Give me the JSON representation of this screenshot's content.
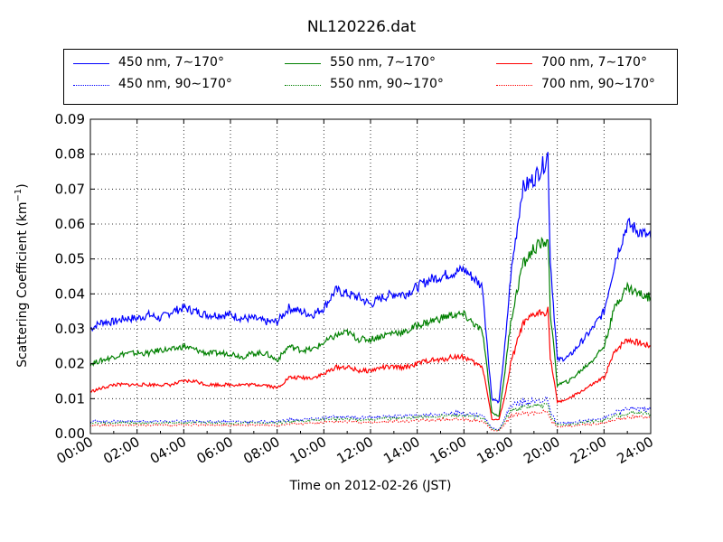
{
  "chart_data": {
    "type": "line",
    "title": "NL120226.dat",
    "xlabel": "Time on 2012-02-26 (JST)",
    "ylabel": "Scattering Coefficient (km",
    "ylabel_sup": "−1",
    "ylabel_end": ")",
    "xlim": [
      "00:00",
      "24:00"
    ],
    "ylim": [
      0,
      0.09
    ],
    "grid": true,
    "legend_position": "top",
    "x_ticks": [
      "00:00",
      "02:00",
      "04:00",
      "06:00",
      "08:00",
      "10:00",
      "12:00",
      "14:00",
      "16:00",
      "18:00",
      "20:00",
      "22:00",
      "24:00"
    ],
    "y_ticks": [
      "0.00",
      "0.01",
      "0.02",
      "0.03",
      "0.04",
      "0.05",
      "0.06",
      "0.07",
      "0.08",
      "0.09"
    ],
    "x_hours": [
      0,
      0.5,
      1,
      1.5,
      2,
      2.5,
      3,
      3.5,
      4,
      4.5,
      5,
      5.5,
      6,
      6.5,
      7,
      7.5,
      8,
      8.5,
      9,
      9.5,
      10,
      10.5,
      11,
      11.5,
      12,
      12.5,
      13,
      13.5,
      14,
      14.5,
      15,
      15.5,
      16,
      16.5,
      16.8,
      17.0,
      17.2,
      17.5,
      17.8,
      18.0,
      18.5,
      19.0,
      19.5,
      19.6,
      19.7,
      20,
      20.5,
      21,
      21.5,
      22,
      22.5,
      23,
      23.5,
      24
    ],
    "series": [
      {
        "name": "450 nm, 7∼170°",
        "color": "#0000ff",
        "style": "solid",
        "values": [
          0.03,
          0.032,
          0.032,
          0.033,
          0.033,
          0.034,
          0.033,
          0.035,
          0.036,
          0.035,
          0.034,
          0.034,
          0.034,
          0.033,
          0.033,
          0.032,
          0.032,
          0.036,
          0.035,
          0.034,
          0.036,
          0.041,
          0.04,
          0.039,
          0.037,
          0.039,
          0.04,
          0.04,
          0.042,
          0.044,
          0.045,
          0.046,
          0.047,
          0.044,
          0.042,
          0.025,
          0.01,
          0.009,
          0.028,
          0.045,
          0.07,
          0.073,
          0.078,
          0.08,
          0.05,
          0.021,
          0.022,
          0.026,
          0.03,
          0.035,
          0.05,
          0.06,
          0.058,
          0.056
        ]
      },
      {
        "name": "550 nm, 7∼170°",
        "color": "#008000",
        "style": "solid",
        "values": [
          0.02,
          0.021,
          0.022,
          0.023,
          0.023,
          0.023,
          0.024,
          0.024,
          0.025,
          0.024,
          0.023,
          0.023,
          0.023,
          0.022,
          0.023,
          0.023,
          0.021,
          0.025,
          0.024,
          0.024,
          0.026,
          0.028,
          0.029,
          0.027,
          0.027,
          0.028,
          0.029,
          0.029,
          0.031,
          0.032,
          0.033,
          0.034,
          0.034,
          0.031,
          0.029,
          0.018,
          0.006,
          0.005,
          0.02,
          0.032,
          0.048,
          0.053,
          0.055,
          0.057,
          0.035,
          0.014,
          0.015,
          0.018,
          0.021,
          0.025,
          0.037,
          0.042,
          0.04,
          0.039
        ]
      },
      {
        "name": "700 nm, 7∼170°",
        "color": "#ff0000",
        "style": "solid",
        "values": [
          0.012,
          0.013,
          0.014,
          0.014,
          0.014,
          0.014,
          0.014,
          0.014,
          0.015,
          0.015,
          0.014,
          0.014,
          0.014,
          0.014,
          0.014,
          0.014,
          0.013,
          0.016,
          0.016,
          0.016,
          0.017,
          0.019,
          0.019,
          0.018,
          0.018,
          0.019,
          0.019,
          0.019,
          0.02,
          0.021,
          0.021,
          0.022,
          0.022,
          0.02,
          0.019,
          0.012,
          0.004,
          0.004,
          0.012,
          0.02,
          0.031,
          0.034,
          0.035,
          0.036,
          0.022,
          0.009,
          0.01,
          0.012,
          0.014,
          0.016,
          0.024,
          0.027,
          0.026,
          0.025
        ]
      },
      {
        "name": "450 nm, 90∼170°",
        "color": "#0000ff",
        "style": "dotted",
        "values": [
          0.0035,
          0.0035,
          0.0035,
          0.0035,
          0.0035,
          0.0035,
          0.0035,
          0.0035,
          0.0035,
          0.0035,
          0.0035,
          0.0035,
          0.0035,
          0.0034,
          0.0034,
          0.0034,
          0.0034,
          0.004,
          0.004,
          0.0042,
          0.0045,
          0.0048,
          0.0048,
          0.0046,
          0.0046,
          0.0048,
          0.005,
          0.005,
          0.0052,
          0.0054,
          0.0056,
          0.0058,
          0.0058,
          0.0055,
          0.0052,
          0.0035,
          0.0015,
          0.0012,
          0.005,
          0.008,
          0.009,
          0.0092,
          0.0096,
          0.0098,
          0.006,
          0.003,
          0.003,
          0.0035,
          0.004,
          0.0045,
          0.006,
          0.007,
          0.0072,
          0.0068
        ]
      },
      {
        "name": "550 nm, 90∼170°",
        "color": "#008000",
        "style": "dotted",
        "values": [
          0.003,
          0.003,
          0.003,
          0.0031,
          0.0031,
          0.0031,
          0.0031,
          0.0031,
          0.0031,
          0.0031,
          0.0031,
          0.0031,
          0.003,
          0.003,
          0.003,
          0.003,
          0.003,
          0.0035,
          0.0035,
          0.0037,
          0.004,
          0.0042,
          0.0042,
          0.004,
          0.004,
          0.0042,
          0.0044,
          0.0044,
          0.0046,
          0.0048,
          0.005,
          0.0051,
          0.0051,
          0.0048,
          0.0045,
          0.003,
          0.0012,
          0.001,
          0.0042,
          0.0065,
          0.0075,
          0.0078,
          0.008,
          0.0082,
          0.005,
          0.0025,
          0.0026,
          0.003,
          0.0034,
          0.0038,
          0.005,
          0.0058,
          0.006,
          0.0056
        ]
      },
      {
        "name": "700 nm, 90∼170°",
        "color": "#ff0000",
        "style": "dotted",
        "values": [
          0.0023,
          0.0023,
          0.0024,
          0.0024,
          0.0024,
          0.0024,
          0.0024,
          0.0024,
          0.0025,
          0.0025,
          0.0024,
          0.0024,
          0.0024,
          0.0024,
          0.0024,
          0.0024,
          0.0023,
          0.0028,
          0.0028,
          0.003,
          0.0032,
          0.0034,
          0.0034,
          0.0032,
          0.0032,
          0.0034,
          0.0035,
          0.0035,
          0.0037,
          0.0038,
          0.004,
          0.0041,
          0.0041,
          0.0038,
          0.0036,
          0.0024,
          0.0009,
          0.0008,
          0.0032,
          0.005,
          0.0058,
          0.006,
          0.0062,
          0.0064,
          0.004,
          0.002,
          0.0021,
          0.0024,
          0.0027,
          0.003,
          0.004,
          0.0046,
          0.0048,
          0.0045
        ]
      }
    ]
  }
}
